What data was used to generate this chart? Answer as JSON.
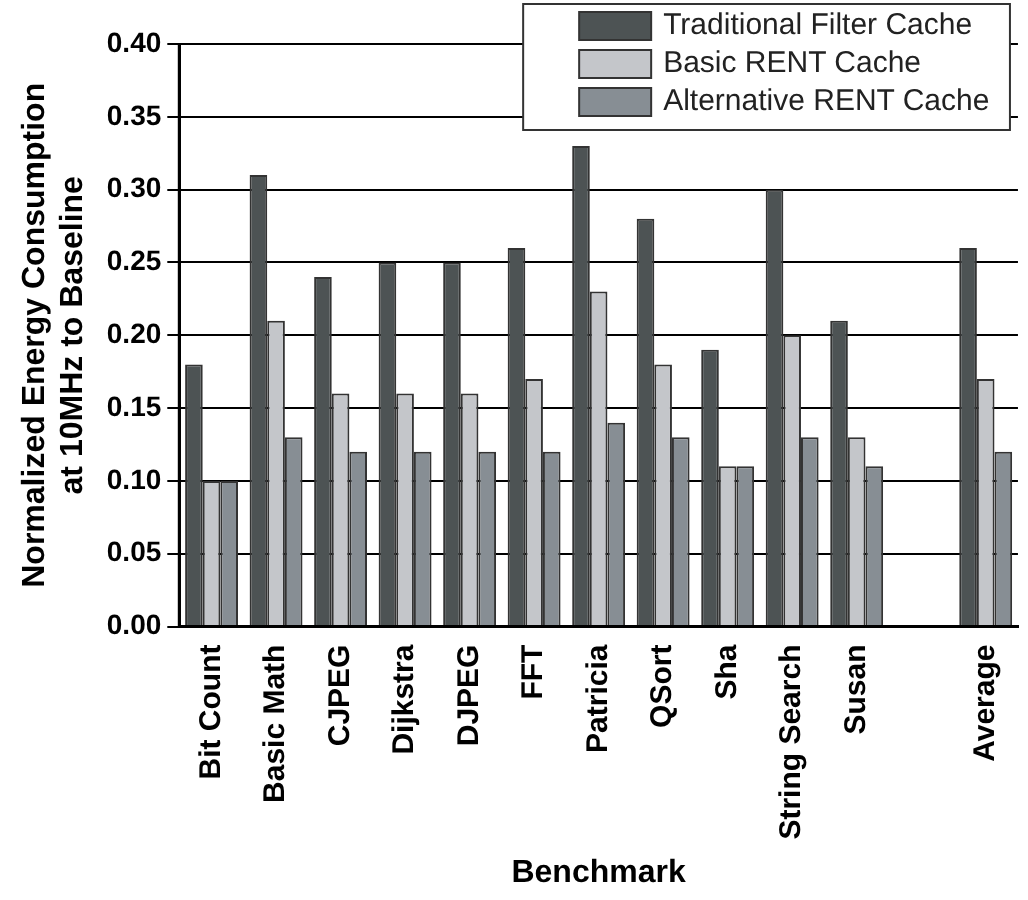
{
  "chart_data": {
    "type": "bar",
    "xlabel": "Benchmark",
    "ylabel": "Normalized Energy Consumption\nat 10MHz to Baseline",
    "categories": [
      "Bit Count",
      "Basic Math",
      "CJPEG",
      "Dijkstra",
      "DJPEG",
      "FFT",
      "Patricia",
      "QSort",
      "Sha",
      "String Search",
      "Susan",
      null,
      "Average"
    ],
    "series": [
      {
        "name": "Traditional Filter Cache",
        "color": "#4d5354",
        "values": [
          0.18,
          0.31,
          0.24,
          0.25,
          0.25,
          0.26,
          0.33,
          0.28,
          0.19,
          0.3,
          0.21,
          null,
          0.26
        ]
      },
      {
        "name": "Basic RENT Cache",
        "color": "#c4c6ca",
        "values": [
          0.1,
          0.21,
          0.16,
          0.16,
          0.16,
          0.17,
          0.23,
          0.18,
          0.11,
          0.2,
          0.13,
          null,
          0.17
        ]
      },
      {
        "name": "Alternative RENT Cache",
        "color": "#878e94",
        "values": [
          0.1,
          0.13,
          0.12,
          0.12,
          0.12,
          0.12,
          0.14,
          0.13,
          0.11,
          0.13,
          0.11,
          null,
          0.12
        ]
      }
    ],
    "ylim": [
      0,
      0.4
    ],
    "yticks": [
      {
        "value": 0,
        "label": "0.00"
      },
      {
        "value": 0.05,
        "label": "0.05"
      },
      {
        "value": 0.1,
        "label": "0.10"
      },
      {
        "value": 0.15,
        "label": "0.15"
      },
      {
        "value": 0.2,
        "label": "0.20"
      },
      {
        "value": 0.25,
        "label": "0.25"
      },
      {
        "value": 0.3,
        "label": "0.30"
      },
      {
        "value": 0.35,
        "label": "0.35"
      },
      {
        "value": 0.4,
        "label": "0.40"
      }
    ],
    "grid": "y",
    "legend": "top right"
  }
}
